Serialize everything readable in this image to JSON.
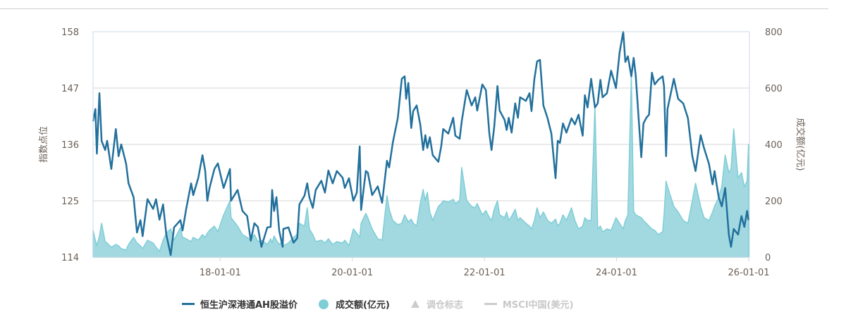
{
  "chart_data": {
    "type": "line",
    "xlabel": "",
    "ylabel_left": "指数点位",
    "ylabel_right": "成交额(亿元)",
    "xlim": [
      "2016-01-29",
      "2026-01-01"
    ],
    "ylim_left": [
      114,
      158
    ],
    "ylim_right": [
      0,
      800
    ],
    "y_ticks_left": [
      "114",
      "125",
      "136",
      "147",
      "158"
    ],
    "y_ticks_right": [
      "0",
      "200",
      "400",
      "600",
      "800"
    ],
    "x_ticks": [
      {
        "date": "2018-01-01",
        "label": "18-01-01"
      },
      {
        "date": "2020-01-01",
        "label": "20-01-01"
      },
      {
        "date": "2022-01-01",
        "label": "22-01-01"
      },
      {
        "date": "2024-01-01",
        "label": "24-01-01"
      },
      {
        "date": "2026-01-01",
        "label": "26-01-01"
      }
    ],
    "grid": true,
    "legend_position": "bottom",
    "legend": [
      {
        "name": "恒生沪深港通AH股溢价",
        "marker": "line",
        "color": "#22709c",
        "visible": true
      },
      {
        "name": "成交额(亿元)",
        "marker": "circle",
        "color": "#7fcdd6",
        "visible": true
      },
      {
        "name": "调仓标志",
        "marker": "triangle",
        "color": "#cccccc",
        "visible": false
      },
      {
        "name": "MSCI中国(美元)",
        "marker": "line",
        "color": "#cccccc",
        "visible": false
      }
    ],
    "x": [
      "2016-01-29",
      "2016-02-11",
      "2016-02-19",
      "2016-03-04",
      "2016-03-16",
      "2016-04-05",
      "2016-04-16",
      "2016-05-09",
      "2016-06-03",
      "2016-06-18",
      "2016-07-03",
      "2016-07-30",
      "2016-08-12",
      "2016-09-09",
      "2016-09-28",
      "2016-10-17",
      "2016-10-29",
      "2016-11-25",
      "2016-12-26",
      "2017-01-11",
      "2017-01-30",
      "2017-02-19",
      "2017-03-09",
      "2017-04-02",
      "2017-04-21",
      "2017-05-26",
      "2017-06-07",
      "2017-06-27",
      "2017-07-24",
      "2017-08-05",
      "2017-09-02",
      "2017-09-25",
      "2017-10-10",
      "2017-10-22",
      "2017-11-03",
      "2017-11-30",
      "2017-12-19",
      "2018-01-20",
      "2018-02-24",
      "2018-03-02",
      "2018-04-07",
      "2018-05-04",
      "2018-05-30",
      "2018-06-19",
      "2018-07-09",
      "2018-07-28",
      "2018-08-17",
      "2018-09-18",
      "2018-10-07",
      "2018-10-15",
      "2018-10-26",
      "2018-11-08",
      "2018-11-23",
      "2018-12-12",
      "2018-12-16",
      "2019-01-13",
      "2019-02-10",
      "2019-03-03",
      "2019-03-15",
      "2019-04-12",
      "2019-04-27",
      "2019-05-09",
      "2019-05-28",
      "2019-06-13",
      "2019-07-14",
      "2019-08-03",
      "2019-08-22",
      "2019-09-15",
      "2019-10-08",
      "2019-11-09",
      "2019-11-21",
      "2019-12-14",
      "2020-01-07",
      "2020-01-26",
      "2020-02-11",
      "2020-02-19",
      "2020-03-16",
      "2020-03-27",
      "2020-04-20",
      "2020-05-21",
      "2020-06-14",
      "2020-07-11",
      "2020-07-23",
      "2020-08-12",
      "2020-09-09",
      "2020-10-01",
      "2020-10-17",
      "2020-10-25",
      "2020-11-06",
      "2020-11-22",
      "2020-12-03",
      "2020-12-22",
      "2021-01-11",
      "2021-01-27",
      "2021-02-08",
      "2021-02-19",
      "2021-03-05",
      "2021-03-21",
      "2021-04-21",
      "2021-05-07",
      "2021-05-18",
      "2021-06-15",
      "2021-07-12",
      "2021-07-24",
      "2021-08-17",
      "2021-08-28",
      "2021-09-25",
      "2021-10-22",
      "2021-11-11",
      "2021-11-22",
      "2021-12-20",
      "2022-01-09",
      "2022-01-28",
      "2022-02-09",
      "2022-02-24",
      "2022-03-14",
      "2022-03-26",
      "2022-04-22",
      "2022-05-04",
      "2022-05-15",
      "2022-05-31",
      "2022-06-20",
      "2022-07-05",
      "2022-07-17",
      "2022-08-18",
      "2022-09-07",
      "2022-09-18",
      "2022-10-04",
      "2022-10-19",
      "2022-11-04",
      "2022-11-23",
      "2022-12-16",
      "2023-01-06",
      "2023-01-29",
      "2023-02-10",
      "2023-02-22",
      "2023-03-11",
      "2023-03-30",
      "2023-04-27",
      "2023-05-16",
      "2023-06-05",
      "2023-06-28",
      "2023-07-10",
      "2023-07-25",
      "2023-08-14",
      "2023-09-04",
      "2023-09-19",
      "2023-10-04",
      "2023-10-16",
      "2023-11-09",
      "2023-12-02",
      "2023-12-29",
      "2024-01-18",
      "2024-02-07",
      "2024-02-19",
      "2024-03-04",
      "2024-03-23",
      "2024-04-05",
      "2024-04-16",
      "2024-05-17",
      "2024-05-29",
      "2024-06-14",
      "2024-06-29",
      "2024-07-15",
      "2024-07-30",
      "2024-08-19",
      "2024-09-12",
      "2024-09-20",
      "2024-10-01",
      "2024-10-09",
      "2024-11-13",
      "2024-12-07",
      "2025-01-04",
      "2025-01-30",
      "2025-02-23",
      "2025-03-13",
      "2025-04-10",
      "2025-04-29",
      "2025-05-26",
      "2025-06-15",
      "2025-06-26",
      "2025-07-19",
      "2025-08-05",
      "2025-08-24",
      "2025-09-13",
      "2025-09-25",
      "2025-10-10",
      "2025-11-03",
      "2025-11-22",
      "2025-12-08",
      "2025-12-23",
      "2025-12-31"
    ],
    "series": [
      {
        "name": "恒生沪深港通AH股溢价",
        "axis": "left",
        "type": "line",
        "color": "#22709c",
        "values": [
          140.5,
          142.9,
          134.2,
          146.0,
          136.7,
          134.9,
          136.7,
          131.2,
          139.0,
          133.7,
          136.0,
          132.2,
          128.4,
          125.7,
          118.8,
          121.2,
          118.1,
          125.3,
          123.4,
          125.3,
          121.3,
          124.3,
          118.4,
          114.4,
          119.8,
          121.2,
          119.2,
          123.4,
          128.4,
          126.1,
          129.5,
          133.9,
          130.8,
          125.0,
          127.5,
          131.2,
          132.3,
          127.5,
          131.2,
          125.0,
          127.1,
          123.0,
          122.0,
          117.2,
          120.6,
          119.9,
          116.0,
          119.8,
          119.9,
          127.1,
          123.0,
          125.7,
          119.2,
          116.0,
          119.5,
          119.8,
          116.8,
          117.7,
          124.3,
          126.0,
          128.4,
          125.7,
          123.6,
          127.1,
          128.9,
          126.6,
          130.9,
          128.4,
          130.8,
          129.5,
          127.5,
          129.4,
          125.0,
          126.6,
          135.6,
          123.2,
          130.8,
          130.5,
          126.1,
          127.8,
          124.6,
          132.8,
          131.5,
          136.3,
          141.2,
          148.8,
          149.3,
          144.9,
          148.0,
          139.2,
          142.5,
          143.6,
          139.9,
          134.9,
          137.8,
          135.3,
          137.4,
          133.9,
          132.6,
          135.7,
          139.0,
          138.1,
          141.2,
          137.7,
          137.1,
          140.5,
          146.6,
          143.6,
          145.2,
          142.6,
          147.7,
          146.6,
          138.1,
          134.9,
          139.4,
          147.4,
          142.6,
          140.8,
          138.8,
          141.2,
          138.3,
          144.0,
          141.2,
          145.2,
          144.5,
          146.0,
          142.5,
          148.8,
          152.2,
          152.5,
          143.6,
          141.1,
          138.1,
          129.4,
          136.7,
          136.3,
          140.1,
          138.3,
          141.1,
          139.9,
          141.8,
          137.7,
          145.6,
          143.2,
          148.8,
          143.2,
          144.0,
          148.6,
          145.2,
          146.0,
          150.4,
          147.0,
          153.9,
          158.0,
          152.1,
          153.2,
          149.3,
          152.9,
          149.5,
          133.5,
          140.1,
          141.2,
          141.8,
          150.0,
          147.7,
          148.6,
          149.3,
          147.3,
          133.7,
          142.9,
          148.8,
          144.9,
          144.0,
          141.1,
          133.7,
          130.8,
          137.8,
          135.3,
          132.2,
          128.2,
          130.8,
          125.7,
          123.9,
          127.5,
          118.4,
          116.0,
          119.5,
          118.4,
          122.0,
          119.9,
          123.0,
          121.2
        ]
      },
      {
        "name": "成交额(亿元)",
        "axis": "right",
        "type": "area",
        "color": "#7fcdd6",
        "values": [
          95,
          60,
          40,
          75,
          120,
          55,
          50,
          35,
          45,
          40,
          30,
          25,
          45,
          70,
          50,
          40,
          30,
          60,
          50,
          35,
          20,
          60,
          85,
          100,
          60,
          105,
          70,
          65,
          55,
          70,
          60,
          80,
          70,
          85,
          95,
          110,
          90,
          150,
          200,
          140,
          110,
          80,
          70,
          60,
          80,
          55,
          60,
          45,
          65,
          50,
          75,
          60,
          45,
          55,
          40,
          50,
          70,
          80,
          120,
          110,
          175,
          100,
          80,
          55,
          60,
          50,
          65,
          45,
          55,
          50,
          60,
          40,
          100,
          85,
          70,
          120,
          155,
          140,
          100,
          65,
          60,
          218,
          170,
          130,
          115,
          120,
          150,
          140,
          125,
          135,
          120,
          110,
          190,
          240,
          200,
          230,
          160,
          130,
          180,
          190,
          200,
          195,
          205,
          190,
          200,
          318,
          200,
          180,
          175,
          190,
          150,
          165,
          140,
          130,
          170,
          200,
          150,
          140,
          160,
          130,
          145,
          170,
          130,
          140,
          120,
          110,
          100,
          130,
          175,
          140,
          160,
          130,
          120,
          135,
          110,
          120,
          150,
          130,
          175,
          130,
          100,
          110,
          140,
          130,
          130,
          538,
          100,
          110,
          90,
          100,
          95,
          140,
          120,
          100,
          130,
          150,
          643,
          162,
          150,
          140,
          130,
          120,
          110,
          100,
          95,
          80,
          90,
          150,
          270,
          250,
          180,
          160,
          130,
          120,
          200,
          262,
          180,
          140,
          130,
          160,
          180,
          212,
          250,
          362,
          300,
          312,
          455,
          280,
          300,
          250,
          270,
          400
        ]
      }
    ]
  }
}
